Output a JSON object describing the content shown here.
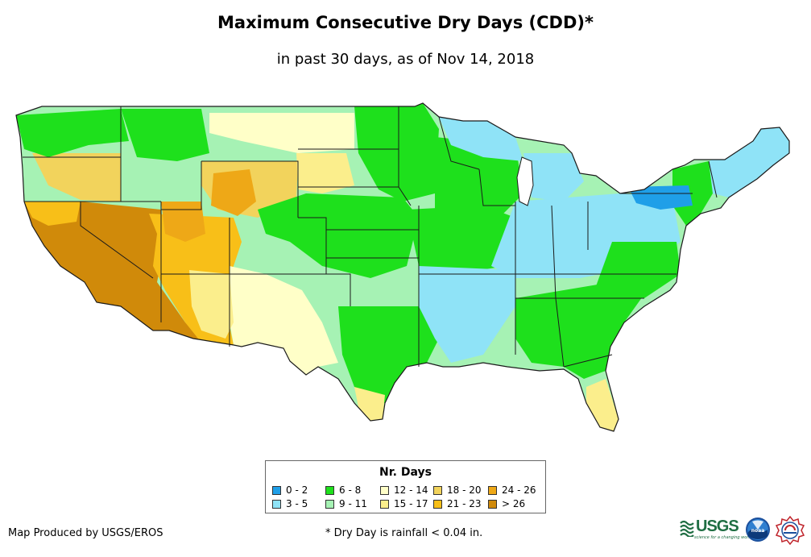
{
  "title": "Maximum Consecutive Dry Days (CDD)*",
  "subtitle": "in past 30 days, as of Nov 14, 2018",
  "legend": {
    "title": "Nr. Days",
    "items": [
      {
        "label": "0 - 2",
        "color": "#1f9fe8"
      },
      {
        "label": "3 - 5",
        "color": "#8fe3f7"
      },
      {
        "label": "6 - 8",
        "color": "#1ee01c"
      },
      {
        "label": "9 - 11",
        "color": "#a6f2b4"
      },
      {
        "label": "12 - 14",
        "color": "#ffffc8"
      },
      {
        "label": "15 - 17",
        "color": "#fbee8c"
      },
      {
        "label": "18 - 20",
        "color": "#f2d35c"
      },
      {
        "label": "21 - 23",
        "color": "#f8bf18"
      },
      {
        "label": "24 - 26",
        "color": "#eea817"
      },
      {
        "label": "> 26",
        "color": "#d08a0a"
      }
    ]
  },
  "credit": "Map Produced by USGS/EROS",
  "footnote": "* Dry Day is rainfall < 0.04 in.",
  "logos": {
    "usgs": "USGS",
    "usgs_tagline": "science for a changing world",
    "noaa": "noaa",
    "nws": "nws-logo"
  },
  "colors": {
    "state_border": "#1a1a1a"
  }
}
